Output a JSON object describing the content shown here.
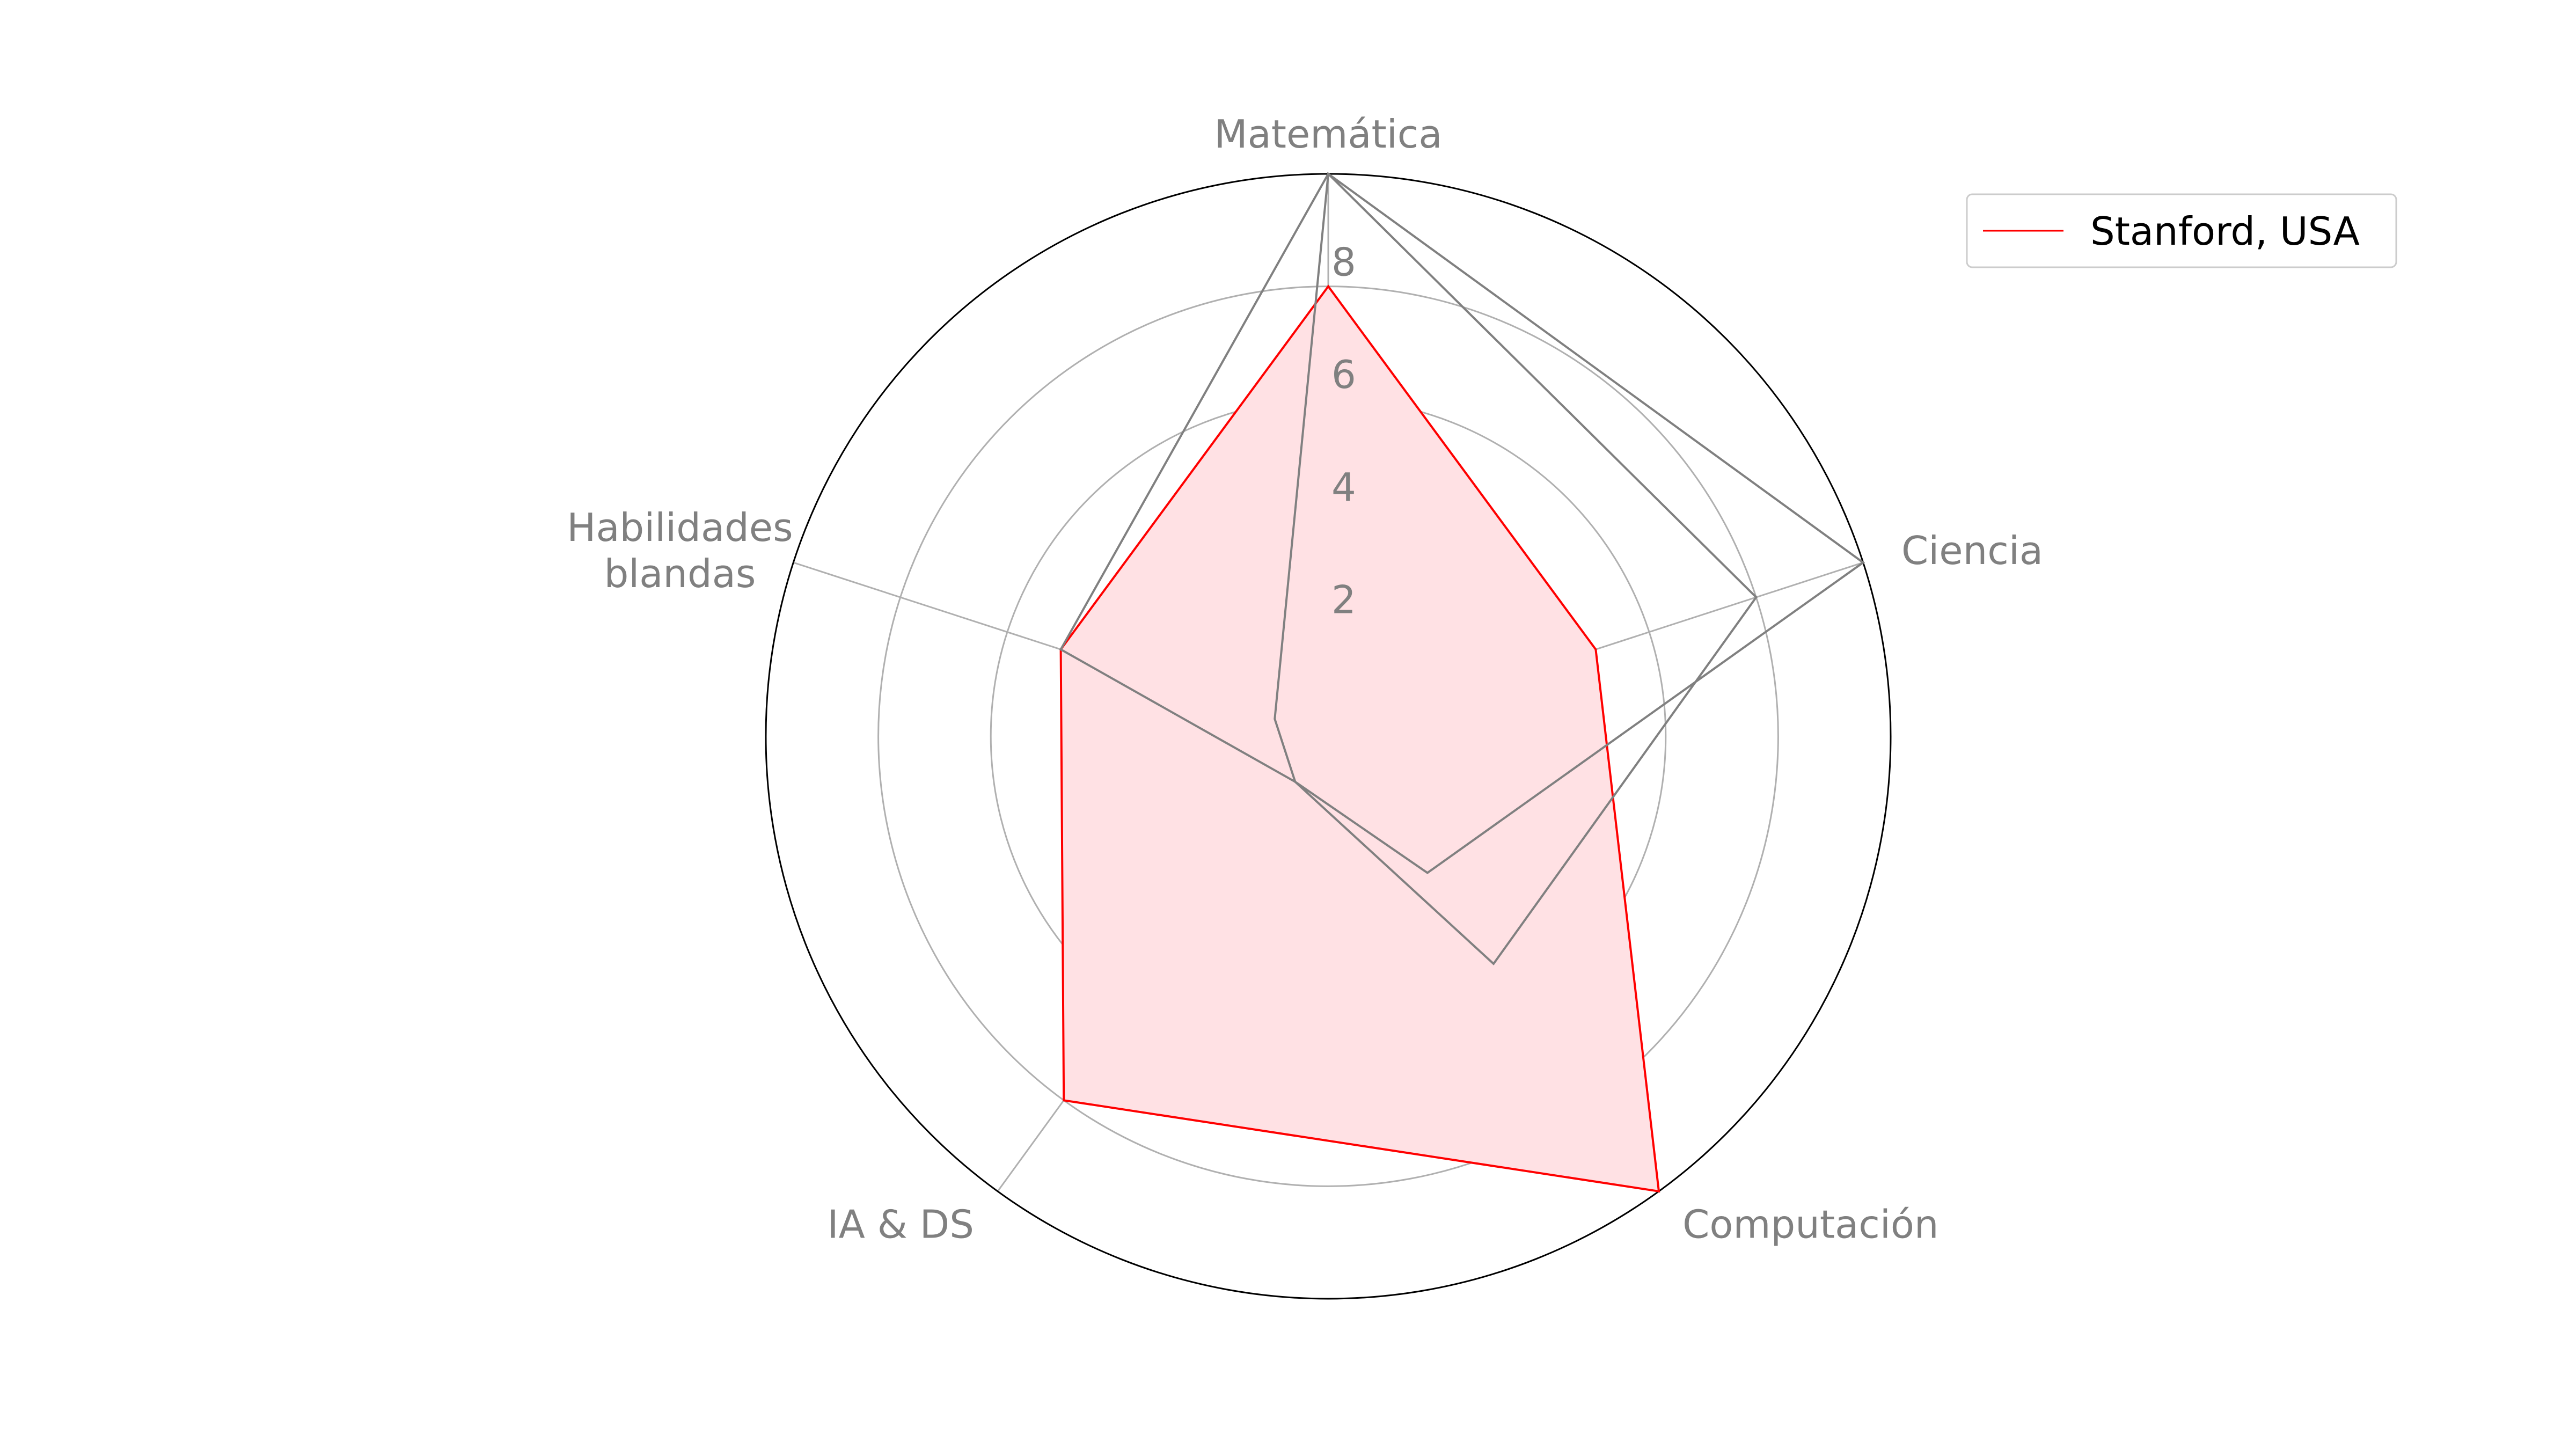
{
  "chart_data": {
    "type": "radar",
    "axes": [
      "Matemática",
      "Ciencia",
      "Computación",
      "IA & DS",
      "Habilidades\nblandas"
    ],
    "rlim": [
      0,
      10
    ],
    "rticks": [
      2,
      4,
      6,
      8
    ],
    "rtick_labels": [
      "2",
      "4",
      "6",
      "8"
    ],
    "grid": true,
    "legend_position": "top-right",
    "series": [
      {
        "name": "Stanford, USA",
        "values": [
          8,
          5,
          10,
          8,
          5
        ],
        "color": "#ff0000",
        "fill": "#ffe1e4",
        "filled": true
      },
      {
        "values": [
          10,
          8,
          5,
          1,
          5
        ],
        "color": "#808080",
        "filled": false
      },
      {
        "values": [
          10,
          10,
          3,
          1,
          1
        ],
        "color": "#808080",
        "filled": false
      }
    ]
  }
}
